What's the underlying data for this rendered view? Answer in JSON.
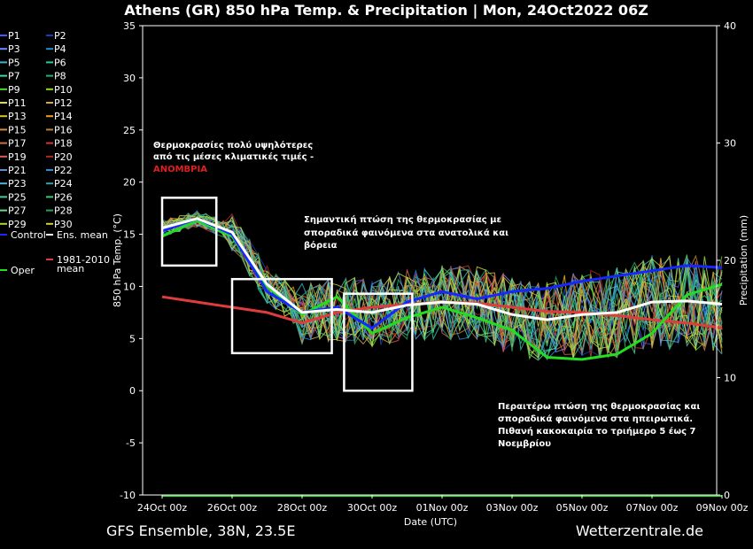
{
  "header": {
    "title": "Athens  (GR)  850 hPa Temp. & Precipitation | Mon, 24Oct2022 06Z"
  },
  "footer": {
    "model": "GFS Ensemble, 38N, 23.5E",
    "site": "Wetterzentrale.de"
  },
  "annotations": {
    "a1_line1": "Θερμοκρασίες πολύ υψηλότερες",
    "a1_line2": "από τις μέσες κλιματικές τιμές -",
    "a1_line3": "ΑΝΟΜΒΡΙΑ",
    "a2_line1": "Σημαντική πτώση της θερμοκρασίας με",
    "a2_line2": "σποραδικά φαινόμενα στα ανατολικά και",
    "a2_line3": "βόρεια",
    "a3_line1": "Περαιτέρω πτώση της θερμοκρασίας και",
    "a3_line2": "σποραδικά φαινόμενα στα ηπειρωτικά.",
    "a3_line3": "Πιθανή κακοκαιρία το τριήμερο 5 έως 7",
    "a3_line4": "Νοεμβρίου"
  },
  "chart_data": {
    "type": "line",
    "xlabel": "Date (UTC)",
    "ylabel": "850 hPa Temp. (°C)",
    "y2label": "Precipitation (mm)",
    "ylim": [
      -10,
      35
    ],
    "y2lim": [
      0,
      40
    ],
    "yticks": [
      -10,
      -5,
      0,
      5,
      10,
      15,
      20,
      25,
      30,
      35
    ],
    "y2ticks": [
      0,
      10,
      20,
      30,
      40
    ],
    "xticks": [
      "24Oct 00z",
      "26Oct 00z",
      "28Oct 00z",
      "30Oct 00z",
      "01Nov 00z",
      "03Nov 00z",
      "05Nov 00z",
      "07Nov 00z",
      "09Nov 00z"
    ],
    "x_days": [
      0,
      1,
      2,
      3,
      4,
      5,
      6,
      7,
      8,
      9,
      10,
      11,
      12,
      13,
      14,
      15,
      16
    ],
    "grid": false,
    "legend_placement": "left",
    "legend": [
      {
        "label": "P1",
        "color": "#3c5cff"
      },
      {
        "label": "P2",
        "color": "#1e3cb4"
      },
      {
        "label": "P3",
        "color": "#6a8cff"
      },
      {
        "label": "P4",
        "color": "#2a8cc8"
      },
      {
        "label": "P5",
        "color": "#3cb4c8"
      },
      {
        "label": "P6",
        "color": "#28c8a0"
      },
      {
        "label": "P7",
        "color": "#3cdc9c"
      },
      {
        "label": "P8",
        "color": "#22b46e"
      },
      {
        "label": "P9",
        "color": "#5ad23c"
      },
      {
        "label": "P10",
        "color": "#8cdc28"
      },
      {
        "label": "P11",
        "color": "#dcdc3c"
      },
      {
        "label": "P12",
        "color": "#dcaa3c"
      },
      {
        "label": "P13",
        "color": "#dcbe28"
      },
      {
        "label": "P14",
        "color": "#e6a028"
      },
      {
        "label": "P15",
        "color": "#d28c3c"
      },
      {
        "label": "P16",
        "color": "#be8232"
      },
      {
        "label": "P17",
        "color": "#d26e46"
      },
      {
        "label": "P18",
        "color": "#c83c3c"
      },
      {
        "label": "P19",
        "color": "#dc5a5a"
      },
      {
        "label": "P20",
        "color": "#b42828"
      },
      {
        "label": "P21",
        "color": "#5a8cdc"
      },
      {
        "label": "P22",
        "color": "#288cdc"
      },
      {
        "label": "P23",
        "color": "#50b4dc"
      },
      {
        "label": "P24",
        "color": "#3ca0a0"
      },
      {
        "label": "P25",
        "color": "#46c8a0"
      },
      {
        "label": "P26",
        "color": "#3cc878"
      },
      {
        "label": "P27",
        "color": "#64dc8c"
      },
      {
        "label": "P28",
        "color": "#28a05a"
      },
      {
        "label": "P29",
        "color": "#a0dc3c"
      },
      {
        "label": "P30",
        "color": "#d2d23c"
      },
      {
        "label": "Control",
        "color": "#1428ff"
      },
      {
        "label": "Ens. mean",
        "color": "#ffffff"
      },
      {
        "label": "Oper",
        "color": "#22dd22"
      },
      {
        "label": "1981-2010 mean",
        "color": "#e03c3c"
      }
    ],
    "series": [
      {
        "name": "Control",
        "color": "#1428ff",
        "width": 3,
        "values": [
          15.3,
          16.5,
          15.0,
          9.5,
          7.5,
          8.0,
          6.0,
          8.5,
          9.5,
          8.8,
          9.5,
          9.8,
          10.5,
          11.0,
          11.5,
          12.0,
          11.8
        ]
      },
      {
        "name": "Ens. mean",
        "color": "#ffffff",
        "width": 3,
        "values": [
          15.6,
          16.5,
          15.2,
          10.2,
          7.5,
          7.8,
          7.5,
          8.2,
          8.5,
          8.3,
          7.3,
          6.8,
          7.3,
          7.5,
          8.5,
          8.6,
          8.3
        ]
      },
      {
        "name": "Oper",
        "color": "#22dd22",
        "width": 3,
        "values": [
          14.8,
          16.3,
          14.8,
          10.0,
          7.3,
          9.0,
          5.5,
          7.0,
          8.0,
          7.0,
          5.8,
          3.2,
          3.0,
          3.5,
          5.5,
          9.2,
          10.2
        ]
      },
      {
        "name": "1981-2010 mean",
        "color": "#e03c3c",
        "width": 3,
        "values": [
          9.0,
          8.5,
          8.0,
          7.5,
          6.5,
          7.5,
          8.0,
          8.3,
          8.5,
          8.4,
          8.0,
          7.6,
          7.5,
          7.2,
          6.8,
          6.5,
          6.0
        ]
      }
    ],
    "precipitation": {
      "name": "Oper",
      "color": "#22dd22",
      "values": [
        0,
        0,
        0,
        0,
        0,
        0,
        0,
        0,
        0,
        0,
        0,
        0,
        0,
        0,
        0,
        0,
        0
      ]
    },
    "highlight_boxes": [
      {
        "x0": 0.0,
        "x1": 1.55,
        "y0": 12.0,
        "y1": 18.5
      },
      {
        "x0": 2.0,
        "x1": 4.85,
        "y0": 3.6,
        "y1": 10.7
      },
      {
        "x0": 5.2,
        "x1": 7.15,
        "y0": 0.0,
        "y1": 9.3
      }
    ]
  }
}
